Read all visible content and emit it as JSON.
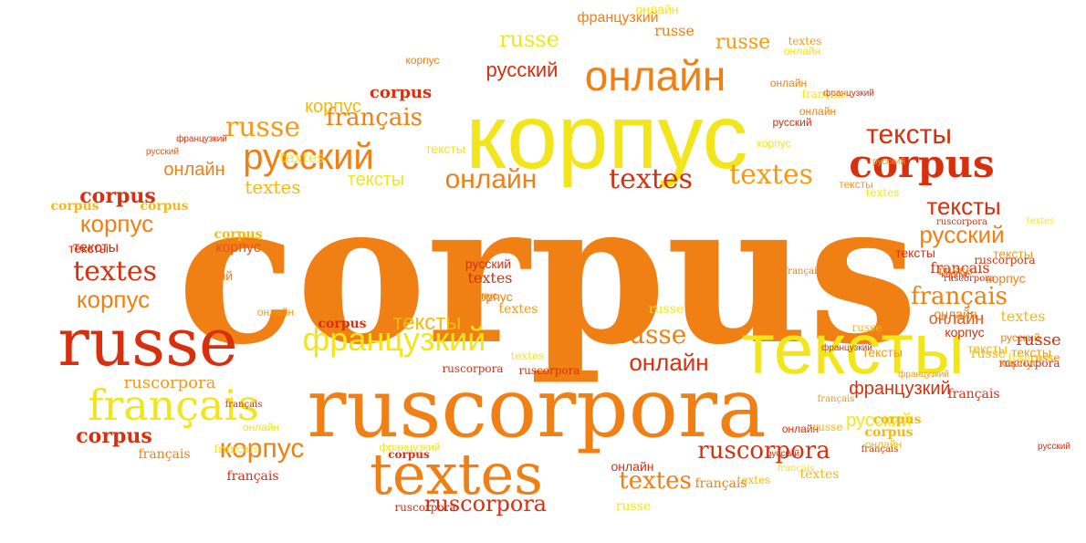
{
  "palette": {
    "red": "#d6300f",
    "orange_red": "#e6561a",
    "orange": "#f07f14",
    "amber": "#f39a16",
    "gold": "#f5b80f",
    "yellow": "#f2e51b"
  },
  "words": [
    {
      "text": "corpus",
      "color": "orange"
    },
    {
      "text": "корпус",
      "color": "yellow"
    },
    {
      "text": "ruscorpora",
      "color": "orange"
    },
    {
      "text": "тексты",
      "color": "yellow"
    },
    {
      "text": "russe",
      "color": "red"
    },
    {
      "text": "textes",
      "color": "orange"
    },
    {
      "text": "français",
      "color": "yellow"
    },
    {
      "text": "французкий",
      "color": "yellow"
    },
    {
      "text": "онлайн",
      "color": "orange"
    },
    {
      "text": "русский",
      "color": "orange"
    },
    {
      "text": "corpus",
      "color": "red"
    },
    {
      "text": "тексты",
      "color": "red"
    },
    {
      "text": "russe",
      "color": "amber"
    },
    {
      "text": "textes",
      "color": "red"
    },
    {
      "text": "онлайн",
      "color": "orange"
    },
    {
      "text": "тексты",
      "color": "red"
    },
    {
      "text": "русский",
      "color": "orange"
    },
    {
      "text": "français",
      "color": "orange"
    },
    {
      "text": "russe",
      "color": "orange"
    },
    {
      "text": "онлайн",
      "color": "red"
    },
    {
      "text": "французкий",
      "color": "red"
    },
    {
      "text": "русский",
      "color": "yellow"
    },
    {
      "text": "ruscorpora",
      "color": "red"
    },
    {
      "text": "textes",
      "color": "orange"
    },
    {
      "text": "ruscorpora",
      "color": "red"
    },
    {
      "text": "corpus",
      "color": "red"
    },
    {
      "text": "corpus",
      "color": "red"
    },
    {
      "text": "français",
      "color": "orange"
    },
    {
      "text": "textes",
      "color": "amber"
    },
    {
      "text": "корпус",
      "color": "orange"
    },
    {
      "text": "корпус",
      "color": "orange"
    },
    {
      "text": "тексты",
      "color": "gold"
    },
    {
      "text": "français",
      "color": "red"
    },
    {
      "text": "russe",
      "color": "yellow"
    },
    {
      "text": "russe",
      "color": "amber"
    },
    {
      "text": "онлайн",
      "color": "orange"
    },
    {
      "text": "онлайн",
      "color": "orange_red"
    },
    {
      "text": "корпус",
      "color": "orange"
    },
    {
      "text": "русский",
      "color": "red"
    },
    {
      "text": "тексты",
      "color": "red"
    },
    {
      "text": "тексты",
      "color": "yellow"
    },
    {
      "text": "textes",
      "color": "gold"
    },
    {
      "text": "textes",
      "color": "red"
    },
    {
      "text": "корпус",
      "color": "gold"
    },
    {
      "text": "corpus",
      "color": "gold"
    },
    {
      "text": "corpus",
      "color": "gold"
    },
    {
      "text": "corpus",
      "color": "gold"
    },
    {
      "text": "corpus",
      "color": "red"
    },
    {
      "text": "corpus",
      "color": "gold"
    },
    {
      "text": "ruscorpora",
      "color": "red"
    },
    {
      "text": "ruscorpora",
      "color": "red"
    },
    {
      "text": "ruscorpora",
      "color": "amber"
    },
    {
      "text": "ruscorpora",
      "color": "red"
    },
    {
      "text": "ruscorpora",
      "color": "red"
    },
    {
      "text": "ruscorpora",
      "color": "red"
    },
    {
      "text": "ruscorpora",
      "color": "red"
    },
    {
      "text": "ruscorpora",
      "color": "red"
    },
    {
      "text": "французкий",
      "color": "orange"
    },
    {
      "text": "французкий",
      "color": "red"
    },
    {
      "text": "французкий",
      "color": "red"
    },
    {
      "text": "французкий",
      "color": "amber"
    },
    {
      "text": "французкий",
      "color": "yellow"
    },
    {
      "text": "французкий",
      "color": "red"
    },
    {
      "text": "français",
      "color": "orange"
    },
    {
      "text": "français",
      "color": "red"
    },
    {
      "text": "français",
      "color": "orange"
    },
    {
      "text": "français",
      "color": "amber"
    },
    {
      "text": "français",
      "color": "yellow"
    },
    {
      "text": "français",
      "color": "orange"
    },
    {
      "text": "français",
      "color": "red"
    },
    {
      "text": "français",
      "color": "red"
    },
    {
      "text": "русский",
      "color": "orange_red"
    },
    {
      "text": "русский",
      "color": "orange"
    },
    {
      "text": "русский",
      "color": "red"
    },
    {
      "text": "русский",
      "color": "orange"
    },
    {
      "text": "русский",
      "color": "red"
    },
    {
      "text": "русский",
      "color": "amber"
    },
    {
      "text": "русский",
      "color": "red"
    },
    {
      "text": "русский",
      "color": "red"
    },
    {
      "text": "онлайн",
      "color": "yellow"
    },
    {
      "text": "онлайн",
      "color": "orange"
    },
    {
      "text": "онлайн",
      "color": "amber"
    },
    {
      "text": "онлайн",
      "color": "yellow"
    },
    {
      "text": "онлайн",
      "color": "orange"
    },
    {
      "text": "онлайн",
      "color": "red"
    },
    {
      "text": "онлайн",
      "color": "gold"
    },
    {
      "text": "онлайн",
      "color": "yellow"
    },
    {
      "text": "онлайн",
      "color": "orange"
    },
    {
      "text": "онлайн",
      "color": "red"
    },
    {
      "text": "textes",
      "color": "yellow"
    },
    {
      "text": "textes",
      "color": "amber"
    },
    {
      "text": "textes",
      "color": "gold"
    },
    {
      "text": "textes",
      "color": "yellow"
    },
    {
      "text": "textes",
      "color": "yellow"
    },
    {
      "text": "textes",
      "color": "gold"
    },
    {
      "text": "textes",
      "color": "amber"
    },
    {
      "text": "textes",
      "color": "red"
    },
    {
      "text": "textes",
      "color": "yellow"
    },
    {
      "text": "textes",
      "color": "gold"
    },
    {
      "text": "корпус",
      "color": "orange_red"
    },
    {
      "text": "корпус",
      "color": "orange"
    },
    {
      "text": "корпус",
      "color": "orange"
    },
    {
      "text": "корпус",
      "color": "orange"
    },
    {
      "text": "корпус",
      "color": "orange"
    },
    {
      "text": "корпус",
      "color": "red"
    },
    {
      "text": "корпус",
      "color": "orange"
    },
    {
      "text": "корпус",
      "color": "yellow"
    },
    {
      "text": "корпус",
      "color": "red"
    },
    {
      "text": "тексты",
      "color": "red"
    },
    {
      "text": "тексты",
      "color": "yellow"
    },
    {
      "text": "тексты",
      "color": "amber"
    },
    {
      "text": "тексты",
      "color": "amber"
    },
    {
      "text": "тексты",
      "color": "red"
    },
    {
      "text": "тексты",
      "color": "amber"
    },
    {
      "text": "тексты",
      "color": "amber"
    },
    {
      "text": "тексты",
      "color": "gold"
    },
    {
      "text": "russe",
      "color": "yellow"
    },
    {
      "text": "russe",
      "color": "gold"
    },
    {
      "text": "russe",
      "color": "orange"
    },
    {
      "text": "russe",
      "color": "red"
    },
    {
      "text": "russe",
      "color": "yellow"
    },
    {
      "text": "russe",
      "color": "orange"
    },
    {
      "text": "russe",
      "color": "gold"
    },
    {
      "text": "russe",
      "color": "gold"
    },
    {
      "text": "russe",
      "color": "orange"
    },
    {
      "text": "corpus",
      "color": "red"
    },
    {
      "text": "corpus",
      "color": "red"
    },
    {
      "text": "corpus",
      "color": "gold"
    },
    {
      "text": "français",
      "color": "yellow"
    },
    {
      "text": "français",
      "color": "red"
    },
    {
      "text": "français",
      "color": "yellow"
    },
    {
      "text": "français",
      "color": "yellow"
    }
  ]
}
